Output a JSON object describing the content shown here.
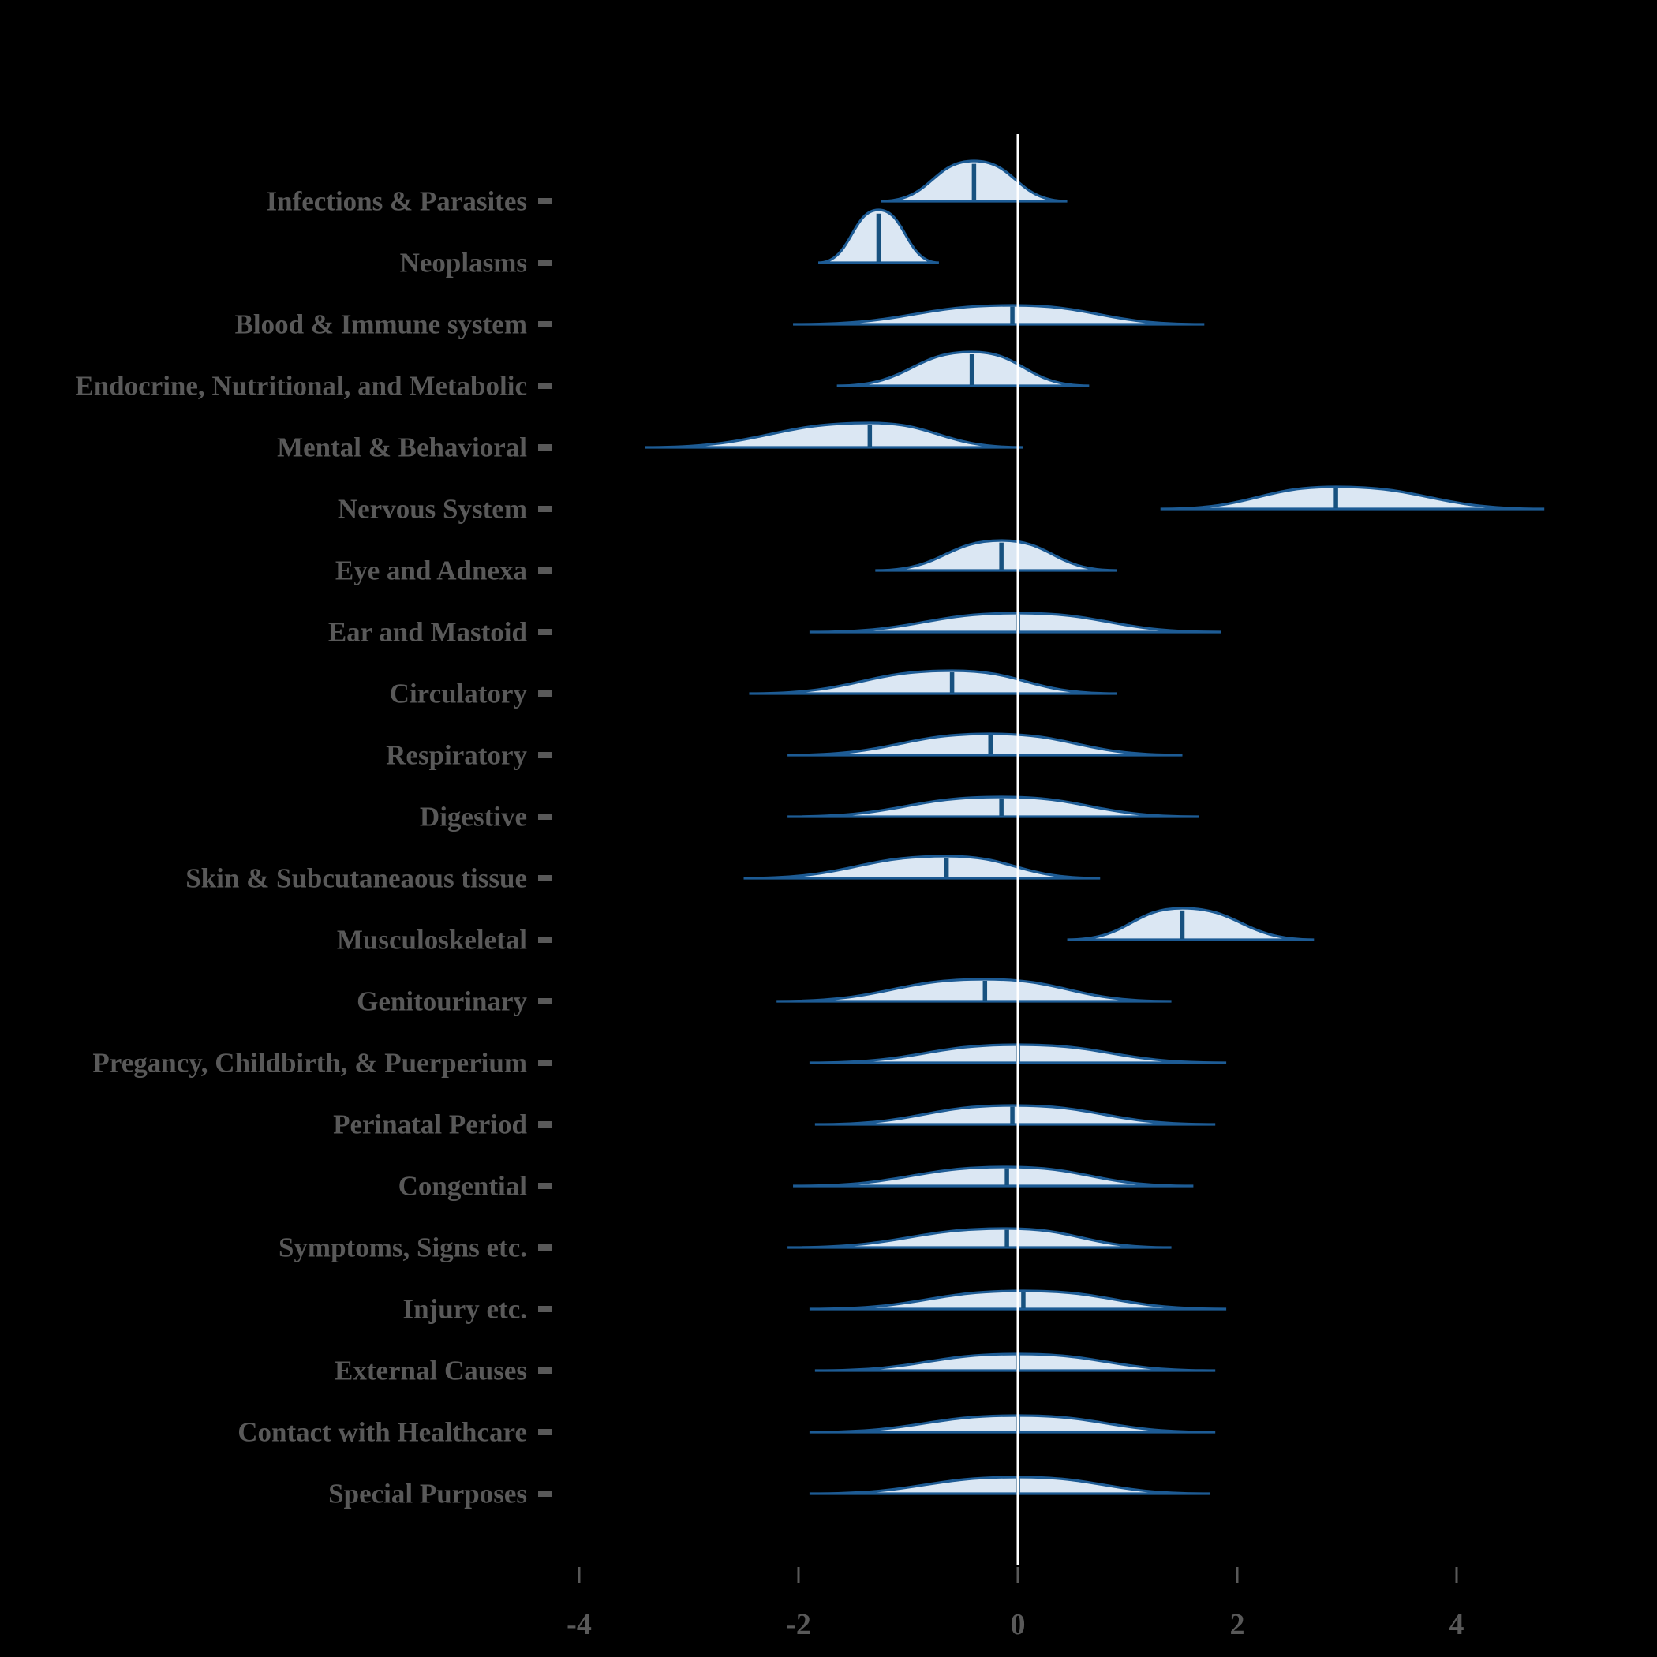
{
  "chart_data": {
    "type": "ridgeline",
    "title": "",
    "xlabel": "",
    "ylabel": "",
    "x_axis": {
      "tick_labels": [
        "-4",
        "-2",
        "0",
        "2",
        "4"
      ],
      "tick_values": [
        -4,
        -2,
        0,
        2,
        4
      ],
      "range": [
        -4.6,
        5.2
      ],
      "grid": false
    },
    "zero_line": {
      "x": 0,
      "color": "#ffffff"
    },
    "style": {
      "violin_fill": "#dbe7f3",
      "violin_stroke": "#1d5b94",
      "median_color": "#17517f",
      "label_color": "#595959",
      "tick_color": "#595959",
      "background": "#000000"
    },
    "categories": [
      "Infections & Parasites",
      "Neoplasms",
      "Blood & Immune system",
      "Endocrine, Nutritional, and Metabolic",
      "Mental & Behavioral",
      "Nervous System",
      "Eye and Adnexa",
      "Ear and Mastoid",
      "Circulatory",
      "Respiratory",
      "Digestive",
      "Skin & Subcutaneaous tissue",
      "Musculoskeletal",
      "Genitourinary",
      "Pregancy, Childbirth, & Puerperium",
      "Perinatal Period",
      "Congential",
      "Symptoms, Signs etc.",
      "Injury etc.",
      "External Causes",
      "Contact with Healthcare",
      "Special Purposes"
    ],
    "series": [
      {
        "name": "Infections & Parasites",
        "min": -1.25,
        "median": -0.4,
        "max": 0.45,
        "peak": -0.4,
        "peak_height": 51
      },
      {
        "name": "Neoplasms",
        "min": -1.82,
        "median": -1.27,
        "max": -0.72,
        "peak": -1.27,
        "peak_height": 67
      },
      {
        "name": "Blood & Immune system",
        "min": -2.05,
        "median": -0.05,
        "max": 1.7,
        "peak": -0.05,
        "peak_height": 24
      },
      {
        "name": "Endocrine, Nutritional, and Metabolic",
        "min": -1.65,
        "median": -0.42,
        "max": 0.65,
        "peak": -0.42,
        "peak_height": 43
      },
      {
        "name": "Mental & Behavioral",
        "min": -3.4,
        "median": -1.35,
        "max": 0.05,
        "peak": -1.35,
        "peak_height": 31
      },
      {
        "name": "Nervous System",
        "min": 1.3,
        "median": 2.9,
        "max": 4.8,
        "peak": 2.9,
        "peak_height": 28
      },
      {
        "name": "Eye and Adnexa",
        "min": -1.3,
        "median": -0.15,
        "max": 0.9,
        "peak": -0.15,
        "peak_height": 38
      },
      {
        "name": "Ear and Mastoid",
        "min": -1.9,
        "median": 0.0,
        "max": 1.85,
        "peak": 0.0,
        "peak_height": 24
      },
      {
        "name": "Circulatory",
        "min": -2.45,
        "median": -0.6,
        "max": 0.9,
        "peak": -0.6,
        "peak_height": 29
      },
      {
        "name": "Respiratory",
        "min": -2.1,
        "median": -0.25,
        "max": 1.5,
        "peak": -0.25,
        "peak_height": 27
      },
      {
        "name": "Digestive",
        "min": -2.1,
        "median": -0.15,
        "max": 1.65,
        "peak": -0.15,
        "peak_height": 25
      },
      {
        "name": "Skin & Subcutaneaous tissue",
        "min": -2.5,
        "median": -0.65,
        "max": 0.75,
        "peak": -0.65,
        "peak_height": 28
      },
      {
        "name": "Musculoskeletal",
        "min": 0.45,
        "median": 1.5,
        "max": 2.7,
        "peak": 1.5,
        "peak_height": 40
      },
      {
        "name": "Genitourinary",
        "min": -2.2,
        "median": -0.3,
        "max": 1.4,
        "peak": -0.3,
        "peak_height": 28
      },
      {
        "name": "Pregancy, Childbirth, & Puerperium",
        "min": -1.9,
        "median": 0.0,
        "max": 1.9,
        "peak": 0.0,
        "peak_height": 23
      },
      {
        "name": "Perinatal Period",
        "min": -1.85,
        "median": -0.05,
        "max": 1.8,
        "peak": -0.05,
        "peak_height": 24
      },
      {
        "name": "Congential",
        "min": -2.05,
        "median": -0.1,
        "max": 1.6,
        "peak": -0.1,
        "peak_height": 24
      },
      {
        "name": "Symptoms, Signs etc.",
        "min": -2.1,
        "median": -0.1,
        "max": 1.4,
        "peak": -0.1,
        "peak_height": 24
      },
      {
        "name": "Injury etc.",
        "min": -1.9,
        "median": 0.05,
        "max": 1.9,
        "peak": 0.05,
        "peak_height": 23
      },
      {
        "name": "External Causes",
        "min": -1.85,
        "median": 0.0,
        "max": 1.8,
        "peak": 0.0,
        "peak_height": 21
      },
      {
        "name": "Contact with Healthcare",
        "min": -1.9,
        "median": 0.0,
        "max": 1.8,
        "peak": 0.0,
        "peak_height": 21
      },
      {
        "name": "Special Purposes",
        "min": -1.9,
        "median": 0.0,
        "max": 1.75,
        "peak": 0.0,
        "peak_height": 21
      }
    ],
    "legend": null
  }
}
